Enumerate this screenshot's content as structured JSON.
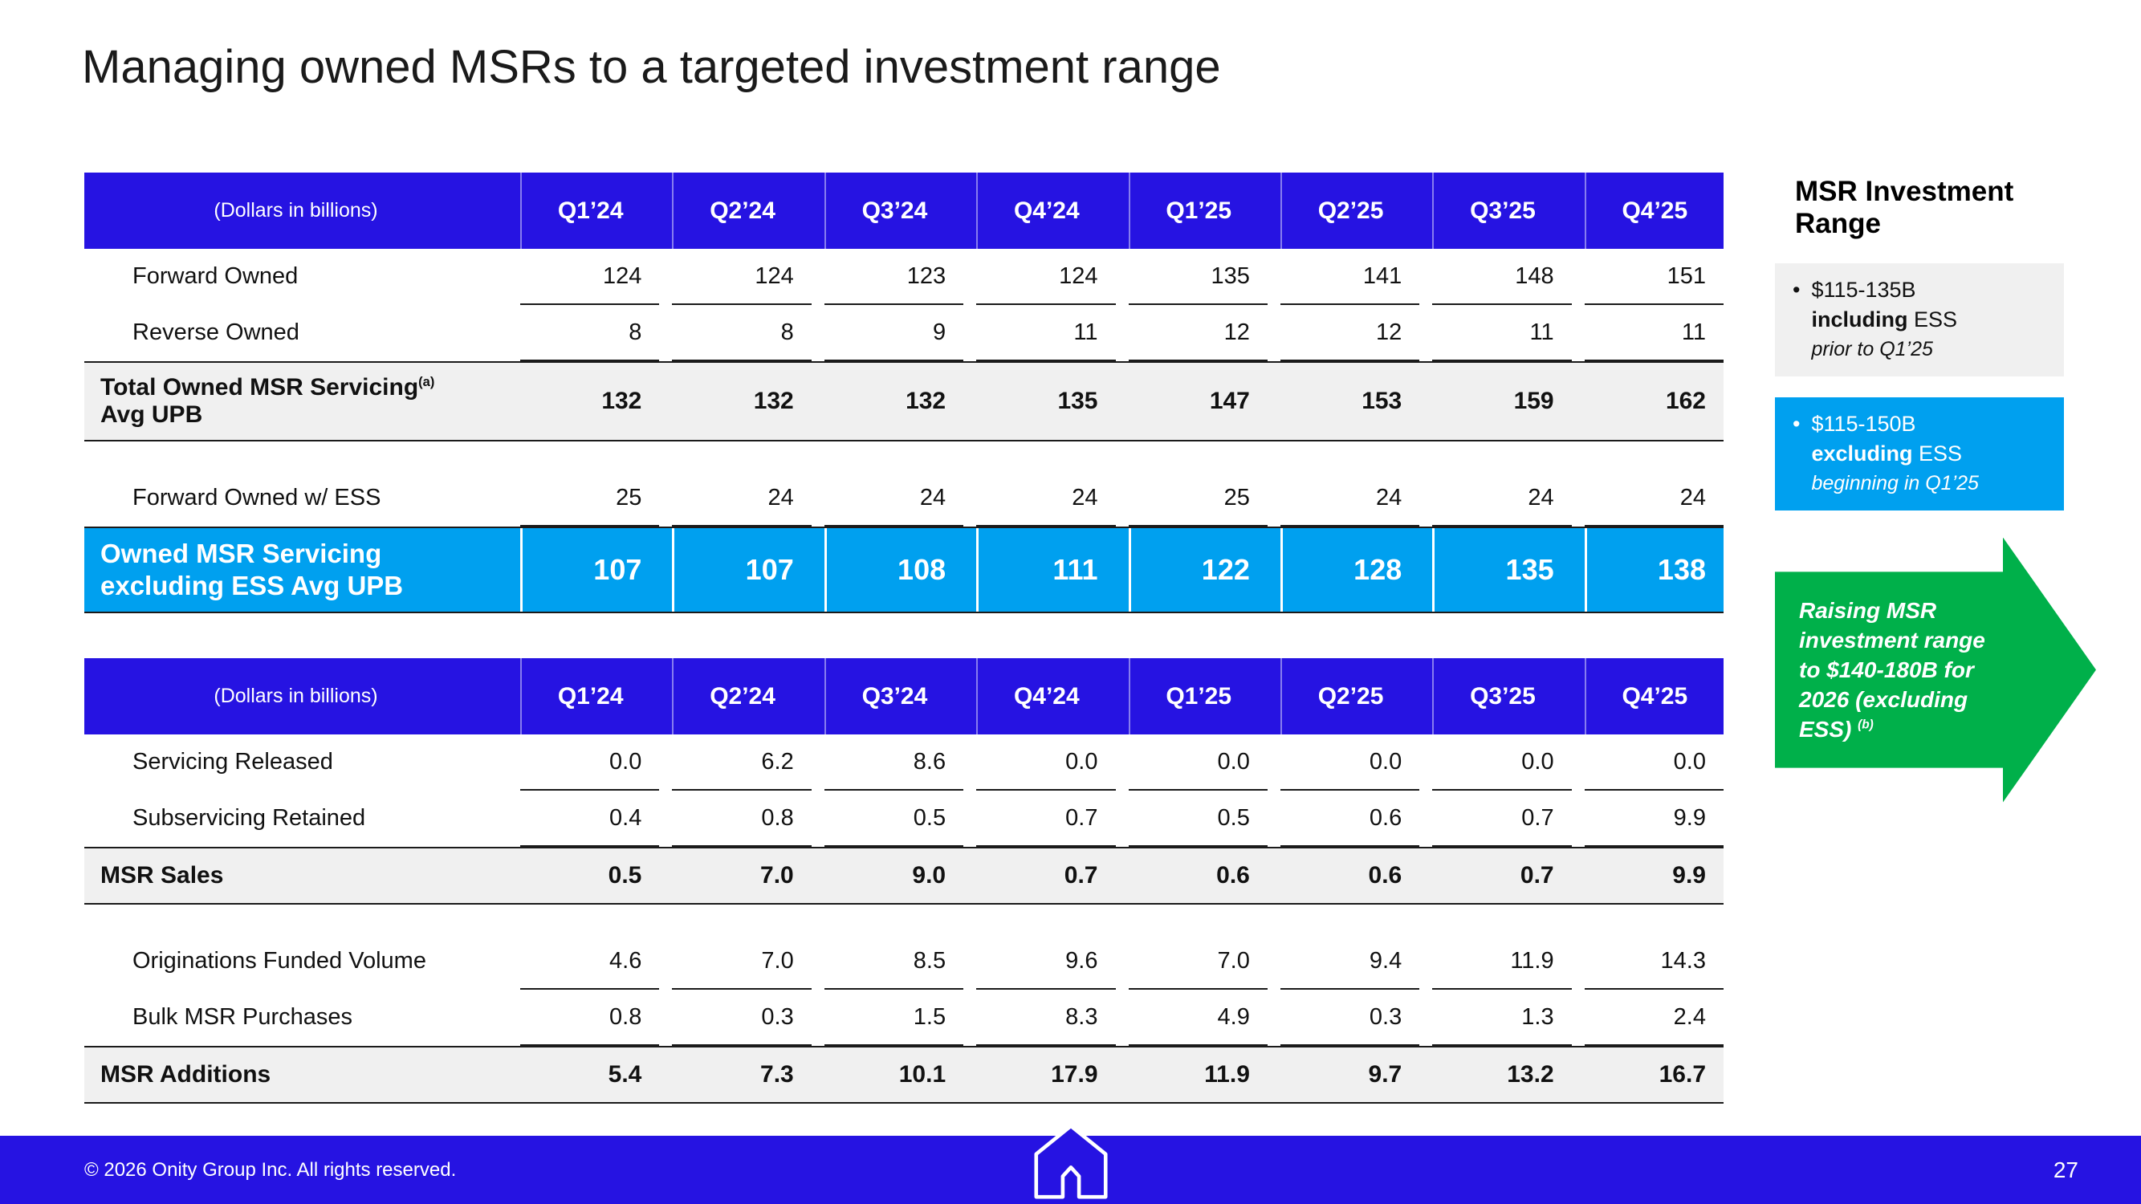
{
  "slide": {
    "title": "Managing owned MSRs to a targeted investment range",
    "footer": {
      "copyright": "© 2026 Onity Group Inc. All rights reserved.",
      "page_number": "27"
    }
  },
  "colors": {
    "header_blue": "#2613e2",
    "accent_cyan": "#00a0ef",
    "accent_green": "#00b04a",
    "band_gray": "#f0f0f0"
  },
  "tables": [
    {
      "header_label": "(Dollars in billions)",
      "columns": [
        "Q1’24",
        "Q2’24",
        "Q3’24",
        "Q4’24",
        "Q1’25",
        "Q2’25",
        "Q3’25",
        "Q4’25"
      ],
      "rows": [
        {
          "style": "normal",
          "label": "Forward Owned",
          "values": [
            "124",
            "124",
            "123",
            "124",
            "135",
            "141",
            "148",
            "151"
          ]
        },
        {
          "style": "normal",
          "label": "Reverse Owned",
          "values": [
            "8",
            "8",
            "9",
            "11",
            "12",
            "12",
            "11",
            "11"
          ]
        },
        {
          "style": "total",
          "label": "Total Owned MSR Servicing",
          "sup": "(a)",
          "label2": "Avg UPB",
          "values": [
            "132",
            "132",
            "132",
            "135",
            "147",
            "153",
            "159",
            "162"
          ]
        },
        {
          "style": "spacer"
        },
        {
          "style": "normal",
          "label": "Forward Owned w/ ESS",
          "values": [
            "25",
            "24",
            "24",
            "24",
            "25",
            "24",
            "24",
            "24"
          ]
        },
        {
          "style": "highlight",
          "label": "Owned MSR Servicing",
          "label2": "excluding ESS Avg UPB",
          "values": [
            "107",
            "107",
            "108",
            "111",
            "122",
            "128",
            "135",
            "138"
          ]
        }
      ]
    },
    {
      "header_label": "(Dollars in billions)",
      "columns": [
        "Q1’24",
        "Q2’24",
        "Q3’24",
        "Q4’24",
        "Q1’25",
        "Q2’25",
        "Q3’25",
        "Q4’25"
      ],
      "rows": [
        {
          "style": "normal",
          "label": "Servicing Released",
          "values": [
            "0.0",
            "6.2",
            "8.6",
            "0.0",
            "0.0",
            "0.0",
            "0.0",
            "0.0"
          ]
        },
        {
          "style": "normal",
          "label": "Subservicing Retained",
          "values": [
            "0.4",
            "0.8",
            "0.5",
            "0.7",
            "0.5",
            "0.6",
            "0.7",
            "9.9"
          ]
        },
        {
          "style": "total",
          "label": "MSR Sales",
          "values": [
            "0.5",
            "7.0",
            "9.0",
            "0.7",
            "0.6",
            "0.6",
            "0.7",
            "9.9"
          ]
        },
        {
          "style": "spacer"
        },
        {
          "style": "normal",
          "label": "Originations Funded Volume",
          "values": [
            "4.6",
            "7.0",
            "8.5",
            "9.6",
            "7.0",
            "9.4",
            "11.9",
            "14.3"
          ]
        },
        {
          "style": "normal",
          "label": "Bulk MSR Purchases",
          "values": [
            "0.8",
            "0.3",
            "1.5",
            "8.3",
            "4.9",
            "0.3",
            "1.3",
            "2.4"
          ]
        },
        {
          "style": "total",
          "label": "MSR Additions",
          "values": [
            "5.4",
            "7.3",
            "10.1",
            "17.9",
            "11.9",
            "9.7",
            "13.2",
            "16.7"
          ]
        }
      ]
    }
  ],
  "sidebar": {
    "title": "MSR Investment Range",
    "bullet_glyph": "•",
    "bullets": [
      {
        "line1": "$115-135B",
        "line2_bold": "including",
        "line2_rest": " ESS",
        "line3": "prior to Q1’25"
      },
      {
        "line1": "$115-150B",
        "line2_bold": "excluding",
        "line2_rest": " ESS",
        "line3": "beginning in Q1’25"
      }
    ],
    "arrow_text": "Raising MSR investment range to $140-180B for 2026 (excluding ESS) ",
    "arrow_sup": "(b)"
  }
}
